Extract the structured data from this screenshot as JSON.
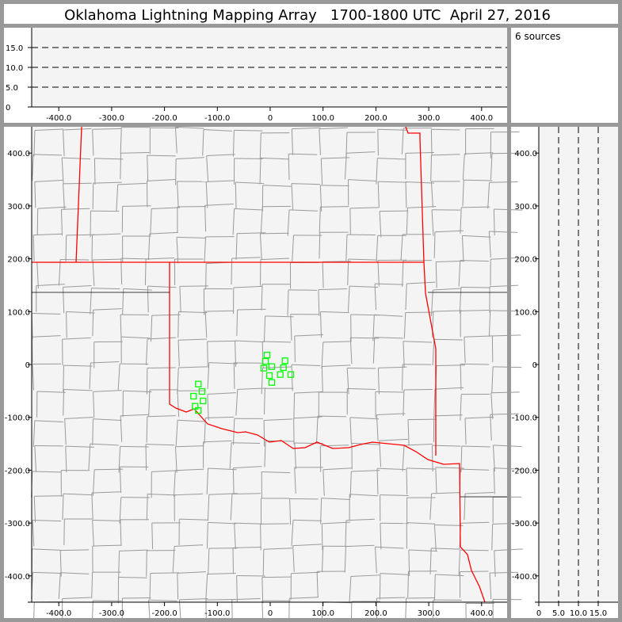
{
  "title": "Oklahoma Lightning Mapping Array   1700-1800 UTC  April 27, 2016",
  "source_count_label": "6 sources",
  "colors": {
    "frame": "#999999",
    "plot_bg": "#f4f4f4",
    "state_border": "#ff0000",
    "county_line": "#999999",
    "source_marker": "#00ff00"
  },
  "chart_data": {
    "type": "scatter",
    "plan_view": {
      "x_ticks": [
        "-400.0",
        "-300.0",
        "-200.0",
        "-100.0",
        "0",
        "100.0",
        "200.0",
        "300.0",
        "400.0"
      ],
      "y_ticks": [
        "400.0",
        "300.0",
        "200.0",
        "100.0",
        "0",
        "-100.0",
        "-200.0",
        "-300.0",
        "-400.0"
      ],
      "xlim": [
        -450,
        450
      ],
      "ylim": [
        -450,
        450
      ],
      "points": [
        [
          -6,
          18
        ],
        [
          -9,
          6
        ],
        [
          -12,
          -7
        ],
        [
          3,
          -4
        ],
        [
          -1.5,
          -21
        ],
        [
          3,
          -34
        ],
        [
          28,
          7
        ],
        [
          25,
          -6
        ],
        [
          19,
          -19
        ],
        [
          39,
          -19
        ],
        [
          -136,
          -37
        ],
        [
          -129,
          -51
        ],
        [
          -145,
          -60
        ],
        [
          -127,
          -69
        ],
        [
          -142,
          -79
        ],
        [
          -136,
          -87
        ]
      ]
    },
    "altitude_vs_x": {
      "y_ticks": [
        "0",
        "5.0",
        "10.0",
        "15.0"
      ],
      "x_ticks": [
        "-400.0",
        "-300.0",
        "-200.0",
        "-100.0",
        "0",
        "100.0",
        "200.0",
        "300.0",
        "400.0"
      ],
      "ylim": [
        0,
        20
      ],
      "grid_dashed_at": [
        5,
        10,
        15
      ]
    },
    "altitude_vs_y": {
      "x_ticks": [
        "0",
        "5.0",
        "10.0",
        "15.0"
      ],
      "y_ticks": [
        "400.0",
        "300.0",
        "200.0",
        "100.0",
        "0",
        "-100.0",
        "-200.0",
        "-300.0",
        "-400.0"
      ],
      "xlim": [
        0,
        20
      ],
      "grid_dashed_at": [
        5,
        10,
        15
      ]
    }
  }
}
